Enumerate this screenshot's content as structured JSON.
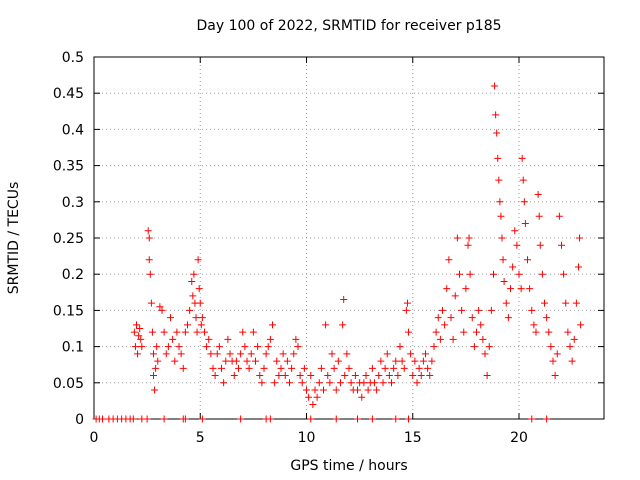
{
  "chart_data": {
    "type": "scatter",
    "title": "Day 100 of 2022, SRMTID for receiver p185",
    "xlabel": "GPS time / hours",
    "ylabel": "SRMTID / TECUs",
    "xlim": [
      0,
      24
    ],
    "ylim": [
      0,
      0.5
    ],
    "xticks": [
      0,
      5,
      10,
      15,
      20
    ],
    "xtick_labels": [
      "0",
      "5",
      "10",
      "15",
      "20"
    ],
    "yticks": [
      0,
      0.05,
      0.1,
      0.15,
      0.2,
      0.25,
      0.3,
      0.35,
      0.4,
      0.45,
      0.5
    ],
    "ytick_labels": [
      "0",
      "0.05",
      "0.1",
      "0.15",
      "0.2",
      "0.25",
      "0.3",
      "0.35",
      "0.4",
      "0.45",
      "0.5"
    ],
    "grid": true,
    "marker": "+",
    "color": "#ff0000",
    "series": [
      {
        "name": "SRMTID",
        "points": [
          [
            0.1,
            0
          ],
          [
            0.25,
            0
          ],
          [
            0.4,
            0
          ],
          [
            0.7,
            0
          ],
          [
            0.9,
            0
          ],
          [
            1.1,
            0
          ],
          [
            1.3,
            0
          ],
          [
            1.5,
            0
          ],
          [
            1.7,
            0
          ],
          [
            1.85,
            0
          ],
          [
            2.25,
            0
          ],
          [
            2.5,
            0
          ],
          [
            3.3,
            0
          ],
          [
            4.2,
            0
          ],
          [
            4.3,
            0
          ],
          [
            5.1,
            0
          ],
          [
            6.9,
            0
          ],
          [
            8.1,
            0
          ],
          [
            8.3,
            0
          ],
          [
            10.2,
            0
          ],
          [
            11.4,
            0
          ],
          [
            12.4,
            0
          ],
          [
            13.1,
            0
          ],
          [
            14.2,
            0
          ],
          [
            14.8,
            0
          ],
          [
            20.6,
            0
          ],
          [
            21.3,
            0
          ],
          [
            1.9,
            0.12
          ],
          [
            1.95,
            0.1
          ],
          [
            2.0,
            0.13
          ],
          [
            2.05,
            0.09
          ],
          [
            2.1,
            0.115
          ],
          [
            2.15,
            0.125
          ],
          [
            2.2,
            0.11
          ],
          [
            2.25,
            0.1
          ],
          [
            2.55,
            0.26
          ],
          [
            2.6,
            0.25
          ],
          [
            2.6,
            0.22
          ],
          [
            2.65,
            0.2
          ],
          [
            2.7,
            0.16
          ],
          [
            2.75,
            0.12
          ],
          [
            2.8,
            0.09
          ],
          [
            2.8,
            0.06
          ],
          [
            2.85,
            0.04
          ],
          [
            2.9,
            0.07
          ],
          [
            2.95,
            0.1
          ],
          [
            3.0,
            0.08
          ],
          [
            3.1,
            0.155
          ],
          [
            3.2,
            0.15
          ],
          [
            3.3,
            0.12
          ],
          [
            3.4,
            0.09
          ],
          [
            3.5,
            0.1
          ],
          [
            3.6,
            0.14
          ],
          [
            3.7,
            0.11
          ],
          [
            3.8,
            0.08
          ],
          [
            3.9,
            0.12
          ],
          [
            4.0,
            0.1
          ],
          [
            4.1,
            0.09
          ],
          [
            4.2,
            0.07
          ],
          [
            4.3,
            0.12
          ],
          [
            4.4,
            0.13
          ],
          [
            4.5,
            0.15
          ],
          [
            4.6,
            0.19
          ],
          [
            4.65,
            0.17
          ],
          [
            4.7,
            0.2
          ],
          [
            4.75,
            0.16
          ],
          [
            4.8,
            0.14
          ],
          [
            4.85,
            0.12
          ],
          [
            4.9,
            0.22
          ],
          [
            4.95,
            0.18
          ],
          [
            5.0,
            0.16
          ],
          [
            5.05,
            0.13
          ],
          [
            5.1,
            0.14
          ],
          [
            5.2,
            0.12
          ],
          [
            5.3,
            0.1
          ],
          [
            5.4,
            0.11
          ],
          [
            5.5,
            0.09
          ],
          [
            5.6,
            0.07
          ],
          [
            5.7,
            0.06
          ],
          [
            5.8,
            0.09
          ],
          [
            5.9,
            0.1
          ],
          [
            6.0,
            0.07
          ],
          [
            6.1,
            0.05
          ],
          [
            6.2,
            0.08
          ],
          [
            6.3,
            0.11
          ],
          [
            6.4,
            0.09
          ],
          [
            6.5,
            0.08
          ],
          [
            6.6,
            0.06
          ],
          [
            6.7,
            0.08
          ],
          [
            6.8,
            0.07
          ],
          [
            6.9,
            0.09
          ],
          [
            7.0,
            0.12
          ],
          [
            7.1,
            0.1
          ],
          [
            7.2,
            0.08
          ],
          [
            7.3,
            0.07
          ],
          [
            7.4,
            0.09
          ],
          [
            7.5,
            0.12
          ],
          [
            7.6,
            0.08
          ],
          [
            7.7,
            0.1
          ],
          [
            7.8,
            0.06
          ],
          [
            7.9,
            0.05
          ],
          [
            8.0,
            0.07
          ],
          [
            8.1,
            0.09
          ],
          [
            8.2,
            0.1
          ],
          [
            8.3,
            0.11
          ],
          [
            8.4,
            0.13
          ],
          [
            8.5,
            0.05
          ],
          [
            8.6,
            0.08
          ],
          [
            8.7,
            0.06
          ],
          [
            8.8,
            0.07
          ],
          [
            8.9,
            0.09
          ],
          [
            9.0,
            0.06
          ],
          [
            9.1,
            0.08
          ],
          [
            9.2,
            0.05
          ],
          [
            9.3,
            0.07
          ],
          [
            9.4,
            0.09
          ],
          [
            9.5,
            0.11
          ],
          [
            9.6,
            0.1
          ],
          [
            9.7,
            0.06
          ],
          [
            9.8,
            0.05
          ],
          [
            9.9,
            0.07
          ],
          [
            10.0,
            0.04
          ],
          [
            10.1,
            0.03
          ],
          [
            10.2,
            0.06
          ],
          [
            10.3,
            0.02
          ],
          [
            10.4,
            0.04
          ],
          [
            10.5,
            0.03
          ],
          [
            10.6,
            0.05
          ],
          [
            10.7,
            0.07
          ],
          [
            10.8,
            0.04
          ],
          [
            10.9,
            0.13
          ],
          [
            11.0,
            0.06
          ],
          [
            11.1,
            0.05
          ],
          [
            11.2,
            0.09
          ],
          [
            11.3,
            0.07
          ],
          [
            11.4,
            0.04
          ],
          [
            11.5,
            0.08
          ],
          [
            11.6,
            0.05
          ],
          [
            11.7,
            0.13
          ],
          [
            11.75,
            0.165
          ],
          [
            11.8,
            0.06
          ],
          [
            11.9,
            0.09
          ],
          [
            12.0,
            0.07
          ],
          [
            12.1,
            0.05
          ],
          [
            12.2,
            0.04
          ],
          [
            12.3,
            0.06
          ],
          [
            12.4,
            0.04
          ],
          [
            12.5,
            0.05
          ],
          [
            12.6,
            0.03
          ],
          [
            12.7,
            0.05
          ],
          [
            12.8,
            0.06
          ],
          [
            12.9,
            0.04
          ],
          [
            13.0,
            0.05
          ],
          [
            13.1,
            0.07
          ],
          [
            13.2,
            0.05
          ],
          [
            13.3,
            0.04
          ],
          [
            13.4,
            0.06
          ],
          [
            13.5,
            0.08
          ],
          [
            13.6,
            0.05
          ],
          [
            13.7,
            0.07
          ],
          [
            13.8,
            0.09
          ],
          [
            13.9,
            0.06
          ],
          [
            14.0,
            0.05
          ],
          [
            14.1,
            0.07
          ],
          [
            14.2,
            0.08
          ],
          [
            14.3,
            0.06
          ],
          [
            14.4,
            0.1
          ],
          [
            14.5,
            0.08
          ],
          [
            14.6,
            0.07
          ],
          [
            14.7,
            0.15
          ],
          [
            14.75,
            0.16
          ],
          [
            14.8,
            0.12
          ],
          [
            14.9,
            0.09
          ],
          [
            15.0,
            0.06
          ],
          [
            15.1,
            0.08
          ],
          [
            15.2,
            0.05
          ],
          [
            15.3,
            0.07
          ],
          [
            15.4,
            0.06
          ],
          [
            15.5,
            0.08
          ],
          [
            15.6,
            0.09
          ],
          [
            15.7,
            0.07
          ],
          [
            15.8,
            0.06
          ],
          [
            15.9,
            0.08
          ],
          [
            16.0,
            0.1
          ],
          [
            16.1,
            0.12
          ],
          [
            16.2,
            0.14
          ],
          [
            16.3,
            0.11
          ],
          [
            16.4,
            0.15
          ],
          [
            16.5,
            0.13
          ],
          [
            16.6,
            0.18
          ],
          [
            16.7,
            0.22
          ],
          [
            16.8,
            0.14
          ],
          [
            16.9,
            0.11
          ],
          [
            17.0,
            0.17
          ],
          [
            17.1,
            0.25
          ],
          [
            17.2,
            0.2
          ],
          [
            17.3,
            0.15
          ],
          [
            17.4,
            0.12
          ],
          [
            17.5,
            0.18
          ],
          [
            17.6,
            0.24
          ],
          [
            17.65,
            0.25
          ],
          [
            17.7,
            0.2
          ],
          [
            17.8,
            0.14
          ],
          [
            17.9,
            0.1
          ],
          [
            18.0,
            0.12
          ],
          [
            18.1,
            0.15
          ],
          [
            18.2,
            0.13
          ],
          [
            18.3,
            0.11
          ],
          [
            18.4,
            0.09
          ],
          [
            18.5,
            0.06
          ],
          [
            18.6,
            0.1
          ],
          [
            18.7,
            0.15
          ],
          [
            18.8,
            0.2
          ],
          [
            18.85,
            0.46
          ],
          [
            18.9,
            0.42
          ],
          [
            18.95,
            0.395
          ],
          [
            19.0,
            0.36
          ],
          [
            19.05,
            0.33
          ],
          [
            19.1,
            0.3
          ],
          [
            19.15,
            0.28
          ],
          [
            19.2,
            0.25
          ],
          [
            19.25,
            0.22
          ],
          [
            19.3,
            0.19
          ],
          [
            19.4,
            0.16
          ],
          [
            19.5,
            0.14
          ],
          [
            19.6,
            0.18
          ],
          [
            19.7,
            0.21
          ],
          [
            19.8,
            0.26
          ],
          [
            19.9,
            0.24
          ],
          [
            20.0,
            0.2
          ],
          [
            20.1,
            0.18
          ],
          [
            20.15,
            0.36
          ],
          [
            20.2,
            0.33
          ],
          [
            20.25,
            0.3
          ],
          [
            20.3,
            0.27
          ],
          [
            20.4,
            0.22
          ],
          [
            20.5,
            0.18
          ],
          [
            20.6,
            0.15
          ],
          [
            20.7,
            0.13
          ],
          [
            20.8,
            0.12
          ],
          [
            20.9,
            0.31
          ],
          [
            20.95,
            0.28
          ],
          [
            21.0,
            0.24
          ],
          [
            21.1,
            0.2
          ],
          [
            21.2,
            0.16
          ],
          [
            21.3,
            0.14
          ],
          [
            21.4,
            0.12
          ],
          [
            21.5,
            0.1
          ],
          [
            21.6,
            0.08
          ],
          [
            21.7,
            0.06
          ],
          [
            21.8,
            0.09
          ],
          [
            21.9,
            0.28
          ],
          [
            22.0,
            0.24
          ],
          [
            22.1,
            0.2
          ],
          [
            22.2,
            0.16
          ],
          [
            22.3,
            0.12
          ],
          [
            22.4,
            0.1
          ],
          [
            22.5,
            0.08
          ],
          [
            22.6,
            0.11
          ],
          [
            22.7,
            0.16
          ],
          [
            22.8,
            0.21
          ],
          [
            22.85,
            0.25
          ],
          [
            22.9,
            0.13
          ]
        ]
      }
    ]
  }
}
